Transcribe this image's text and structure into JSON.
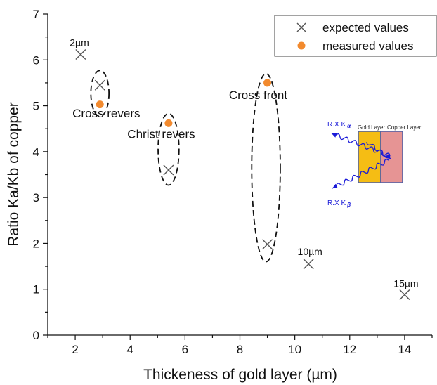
{
  "chart_data": {
    "type": "scatter",
    "title": "",
    "xlabel": "Thickeness of gold layer (µm)",
    "ylabel": "Ratio Ka/Kb of copper",
    "xlim": [
      1,
      15
    ],
    "ylim": [
      0,
      7
    ],
    "xticks": [
      "2",
      "4",
      "6",
      "8",
      "10",
      "12",
      "14"
    ],
    "yticks": [
      "0",
      "1",
      "2",
      "3",
      "4",
      "5",
      "6",
      "7"
    ],
    "legend_position": "top-right",
    "series": [
      {
        "name": "expected values",
        "marker": "x",
        "color": "#555555",
        "x": [
          2.2,
          2.9,
          5.4,
          9.0,
          10.5,
          14.0
        ],
        "y": [
          6.12,
          5.45,
          3.6,
          1.98,
          1.55,
          0.88
        ]
      },
      {
        "name": "measured values",
        "marker": "circle",
        "color": "#f28a2e",
        "x": [
          2.9,
          5.4,
          9.0
        ],
        "y": [
          5.03,
          4.62,
          5.5
        ]
      }
    ],
    "annotations": [
      {
        "text": "2µm",
        "x": 1.8,
        "y": 6.3,
        "size": "small"
      },
      {
        "text": "Cross revers",
        "x": 1.9,
        "y": 4.75,
        "size": "normal"
      },
      {
        "text": "Christ revers",
        "x": 3.9,
        "y": 4.3,
        "size": "normal"
      },
      {
        "text": "Cross front",
        "x": 7.6,
        "y": 5.15,
        "size": "normal"
      },
      {
        "text": "10µm",
        "x": 10.1,
        "y": 1.75,
        "size": "small"
      },
      {
        "text": "15µm",
        "x": 13.6,
        "y": 1.05,
        "size": "small"
      }
    ],
    "ellipses": [
      {
        "cx": 2.9,
        "cy": 5.27,
        "rx": 0.33,
        "ry": 0.5
      },
      {
        "cx": 5.4,
        "cy": 4.05,
        "rx": 0.38,
        "ry": 0.78
      },
      {
        "cx": 8.95,
        "cy": 3.65,
        "rx": 0.52,
        "ry": 2.05
      }
    ],
    "inset": {
      "gold_label": "Gold Layer",
      "copper_label": "Copper Layer",
      "ka_label": "R.X K",
      "ka_sub": "α",
      "kb_label": "R.X K",
      "kb_sub": "β",
      "gold_color": "#f5bd14",
      "copper_color": "#e69494",
      "arrow_color": "#1a1ad8"
    }
  }
}
